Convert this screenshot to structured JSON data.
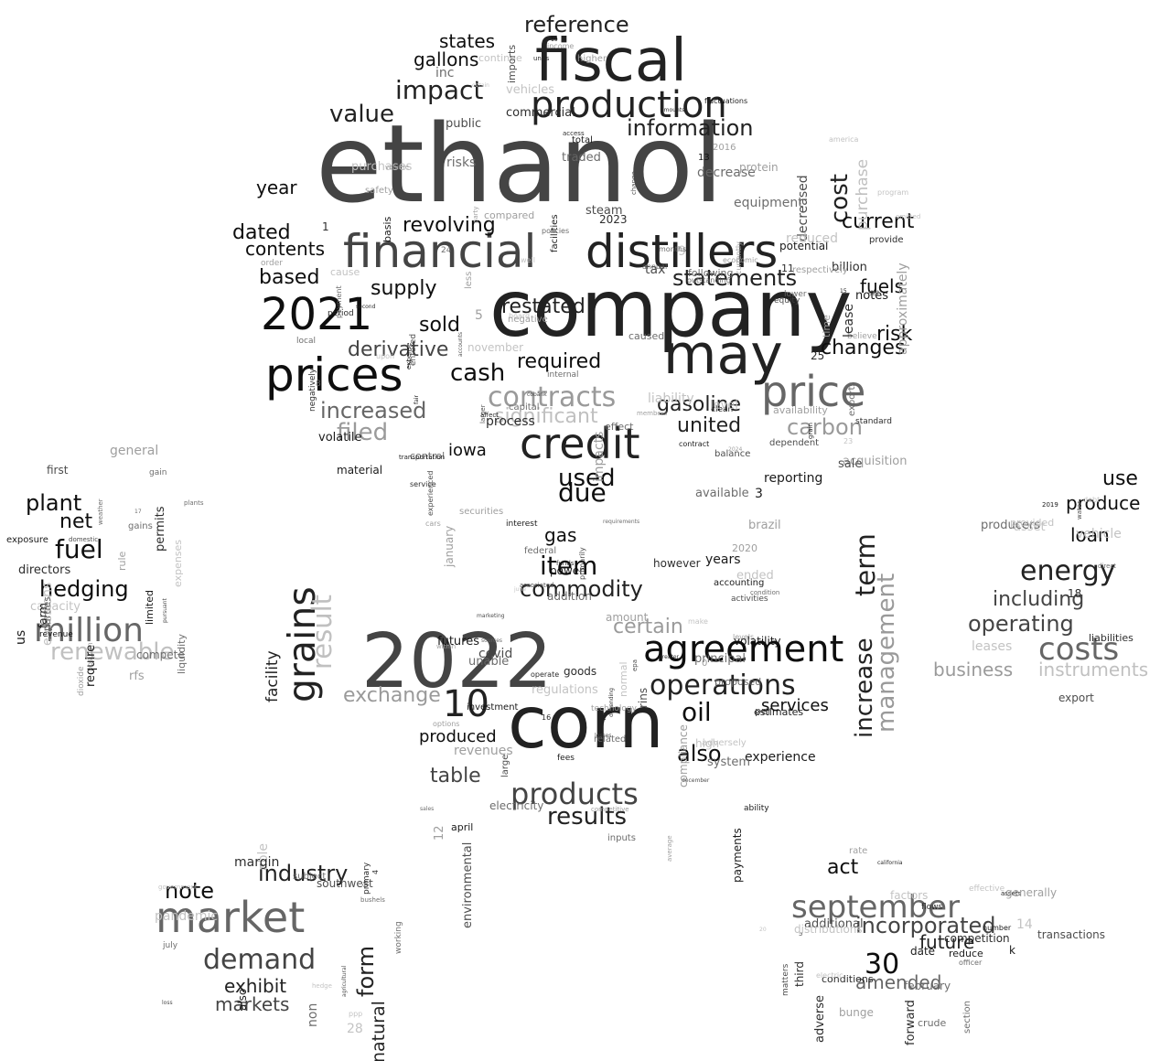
{
  "palette": {
    "darkest": "#0e0e0e",
    "dark": "#222222",
    "mid_dark": "#444444",
    "mid": "#666666",
    "light": "#9a9a9a",
    "lightest": "#c0c0c0"
  },
  "words": [
    {
      "text": "ethanol",
      "weight": 1.0,
      "shade": "mid_dark",
      "rot": 0
    },
    {
      "text": "company",
      "weight": 0.72,
      "shade": "dark",
      "rot": 0
    },
    {
      "text": "2022",
      "weight": 0.66,
      "shade": "mid_dark",
      "rot": 0
    },
    {
      "text": "corn",
      "weight": 0.62,
      "shade": "dark",
      "rot": 0
    },
    {
      "text": "fiscal",
      "weight": 0.52,
      "shade": "dark",
      "rot": 0
    },
    {
      "text": "may",
      "weight": 0.5,
      "shade": "dark",
      "rot": 0
    },
    {
      "text": "financial",
      "weight": 0.46,
      "shade": "mid_dark",
      "rot": 0
    },
    {
      "text": "distillers",
      "weight": 0.46,
      "shade": "dark",
      "rot": 0
    },
    {
      "text": "prices",
      "weight": 0.46,
      "shade": "darkest",
      "rot": 0
    },
    {
      "text": "price",
      "weight": 0.44,
      "shade": "mid",
      "rot": 0
    },
    {
      "text": "2021",
      "weight": 0.42,
      "shade": "darkest",
      "rot": 0
    },
    {
      "text": "credit",
      "weight": 0.4,
      "shade": "dark",
      "rot": 0
    },
    {
      "text": "production",
      "weight": 0.38,
      "shade": "dark",
      "rot": 0
    },
    {
      "text": "market",
      "weight": 0.4,
      "shade": "mid",
      "rot": 0
    },
    {
      "text": "agreement",
      "weight": 0.36,
      "shade": "darkest",
      "rot": 0
    },
    {
      "text": "10",
      "weight": 0.36,
      "shade": "dark",
      "rot": 0
    },
    {
      "text": "grains",
      "weight": 0.34,
      "shade": "dark",
      "rot": -90
    },
    {
      "text": "september",
      "weight": 0.32,
      "shade": "mid",
      "rot": 0
    },
    {
      "text": "million",
      "weight": 0.32,
      "shade": "mid",
      "rot": 0
    },
    {
      "text": "products",
      "weight": 0.3,
      "shade": "mid_dark",
      "rot": 0
    },
    {
      "text": "contracts",
      "weight": 0.28,
      "shade": "light",
      "rot": 0
    },
    {
      "text": "costs",
      "weight": 0.3,
      "shade": "mid",
      "rot": 0
    },
    {
      "text": "30",
      "weight": 0.28,
      "shade": "darkest",
      "rot": 0
    },
    {
      "text": "demand",
      "weight": 0.28,
      "shade": "mid_dark",
      "rot": 0
    },
    {
      "text": "operations",
      "weight": 0.26,
      "shade": "dark",
      "rot": 0
    },
    {
      "text": "energy",
      "weight": 0.26,
      "shade": "dark",
      "rot": 0
    },
    {
      "text": "renewable",
      "weight": 0.26,
      "shade": "lightest",
      "rot": 0
    },
    {
      "text": "impact",
      "weight": 0.26,
      "shade": "dark",
      "rot": 0
    },
    {
      "text": "statements",
      "weight": 0.24,
      "shade": "dark",
      "rot": 0
    },
    {
      "text": "incorporated",
      "weight": 0.24,
      "shade": "mid_dark",
      "rot": 0
    },
    {
      "text": "fuel",
      "weight": 0.24,
      "shade": "darkest",
      "rot": 0
    },
    {
      "text": "result",
      "weight": 0.24,
      "shade": "lightest",
      "rot": -90
    },
    {
      "text": "term",
      "weight": 0.24,
      "shade": "dark",
      "rot": -90
    },
    {
      "text": "increase",
      "weight": 0.22,
      "shade": "dark",
      "rot": -90
    },
    {
      "text": "management",
      "weight": 0.22,
      "shade": "light",
      "rot": -90
    },
    {
      "text": "cost",
      "weight": 0.22,
      "shade": "dark",
      "rot": -90
    },
    {
      "text": "information",
      "weight": 0.22,
      "shade": "dark",
      "rot": 0
    },
    {
      "text": "reference",
      "weight": 0.22,
      "shade": "dark",
      "rot": 0
    },
    {
      "text": "value",
      "weight": 0.22,
      "shade": "dark",
      "rot": 0
    },
    {
      "text": "increased",
      "weight": 0.22,
      "shade": "mid",
      "rot": 0
    },
    {
      "text": "filed",
      "weight": 0.22,
      "shade": "light",
      "rot": 0
    },
    {
      "text": "carbon",
      "weight": 0.22,
      "shade": "light",
      "rot": 0
    },
    {
      "text": "note",
      "weight": 0.22,
      "shade": "darkest",
      "rot": 0
    },
    {
      "text": "industry",
      "weight": 0.22,
      "shade": "dark",
      "rot": 0
    },
    {
      "text": "form",
      "weight": 0.2,
      "shade": "dark",
      "rot": -90
    },
    {
      "text": "commodity",
      "weight": 0.2,
      "shade": "dark",
      "rot": 0
    },
    {
      "text": "item",
      "weight": 0.2,
      "shade": "darkest",
      "rot": 0
    },
    {
      "text": "due",
      "weight": 0.2,
      "shade": "darkest",
      "rot": 0
    },
    {
      "text": "used",
      "weight": 0.2,
      "shade": "darkest",
      "rot": 0
    },
    {
      "text": "results",
      "weight": 0.2,
      "shade": "dark",
      "rot": 0
    },
    {
      "text": "cash",
      "weight": 0.2,
      "shade": "darkest",
      "rot": 0
    },
    {
      "text": "derivative",
      "weight": 0.18,
      "shade": "mid_dark",
      "rot": 0
    },
    {
      "text": "supply",
      "weight": 0.18,
      "shade": "darkest",
      "rot": 0
    },
    {
      "text": "based",
      "weight": 0.18,
      "shade": "darkest",
      "rot": 0
    },
    {
      "text": "restated",
      "weight": 0.18,
      "shade": "dark",
      "rot": 0
    },
    {
      "text": "sold",
      "weight": 0.18,
      "shade": "darkest",
      "rot": 0
    },
    {
      "text": "plant",
      "weight": 0.18,
      "shade": "darkest",
      "rot": 0
    },
    {
      "text": "hedging",
      "weight": 0.18,
      "shade": "darkest",
      "rot": 0
    },
    {
      "text": "including",
      "weight": 0.18,
      "shade": "mid_dark",
      "rot": 0
    },
    {
      "text": "operating",
      "weight": 0.18,
      "shade": "mid_dark",
      "rot": 0
    },
    {
      "text": "business",
      "weight": 0.16,
      "shade": "light",
      "rot": 0
    },
    {
      "text": "instruments",
      "weight": 0.16,
      "shade": "lightest",
      "rot": 0
    },
    {
      "text": "exchange",
      "weight": 0.16,
      "shade": "light",
      "rot": 0
    },
    {
      "text": "oil",
      "weight": 0.18,
      "shade": "darkest",
      "rot": 0
    },
    {
      "text": "also",
      "weight": 0.18,
      "shade": "darkest",
      "rot": 0
    },
    {
      "text": "amended",
      "weight": 0.16,
      "shade": "mid",
      "rot": 0
    },
    {
      "text": "future",
      "weight": 0.16,
      "shade": "dark",
      "rot": 0
    },
    {
      "text": "natural",
      "weight": 0.16,
      "shade": "dark",
      "rot": -90
    },
    {
      "text": "table",
      "weight": 0.16,
      "shade": "mid_dark",
      "rot": 0
    },
    {
      "text": "gasoline",
      "weight": 0.16,
      "shade": "dark",
      "rot": 0
    },
    {
      "text": "united",
      "weight": 0.16,
      "shade": "dark",
      "rot": 0
    },
    {
      "text": "significant",
      "weight": 0.16,
      "shade": "lightest",
      "rot": 0
    },
    {
      "text": "required",
      "weight": 0.16,
      "shade": "darkest",
      "rot": 0
    },
    {
      "text": "certain",
      "weight": 0.16,
      "shade": "light",
      "rot": 0
    },
    {
      "text": "risk",
      "weight": 0.16,
      "shade": "darkest",
      "rot": 0
    },
    {
      "text": "changes",
      "weight": 0.16,
      "shade": "darkest",
      "rot": 0
    },
    {
      "text": "current",
      "weight": 0.16,
      "shade": "darkest",
      "rot": 0
    },
    {
      "text": "revolving",
      "weight": 0.16,
      "shade": "darkest",
      "rot": 0
    },
    {
      "text": "dated",
      "weight": 0.16,
      "shade": "darkest",
      "rot": 0
    },
    {
      "text": "contents",
      "weight": 0.16,
      "shade": "darkest",
      "rot": 0
    },
    {
      "text": "states",
      "weight": 0.16,
      "shade": "darkest",
      "rot": 0
    },
    {
      "text": "gallons",
      "weight": 0.16,
      "shade": "darkest",
      "rot": 0
    },
    {
      "text": "year",
      "weight": 0.16,
      "shade": "darkest",
      "rot": 0
    },
    {
      "text": "fuels",
      "weight": 0.16,
      "shade": "darkest",
      "rot": 0
    },
    {
      "text": "use",
      "weight": 0.16,
      "shade": "darkest",
      "rot": 0
    },
    {
      "text": "produce",
      "weight": 0.14,
      "shade": "darkest",
      "rot": 0
    },
    {
      "text": "loan",
      "weight": 0.14,
      "shade": "darkest",
      "rot": 0
    },
    {
      "text": "net",
      "weight": 0.14,
      "shade": "darkest",
      "rot": 0
    },
    {
      "text": "exhibit",
      "weight": 0.14,
      "shade": "dark",
      "rot": 0
    },
    {
      "text": "markets",
      "weight": 0.14,
      "shade": "mid_dark",
      "rot": 0
    },
    {
      "text": "act",
      "weight": 0.14,
      "shade": "darkest",
      "rot": 0
    },
    {
      "text": "iowa",
      "weight": 0.14,
      "shade": "darkest",
      "rot": 0
    },
    {
      "text": "facility",
      "weight": 0.14,
      "shade": "dark",
      "rot": -90
    },
    {
      "text": "gas",
      "weight": 0.14,
      "shade": "darkest",
      "rot": 0
    },
    {
      "text": "services",
      "weight": 0.14,
      "shade": "darkest",
      "rot": 0
    },
    {
      "text": "produced",
      "weight": 0.14,
      "shade": "darkest",
      "rot": 0
    },
    {
      "text": "purchase",
      "weight": 0.14,
      "shade": "lightest",
      "rot": -90
    },
    {
      "text": "ethanol",
      "weight": 0.0,
      "shade": "mid_dark",
      "rot": 0,
      "hidden": true
    }
  ],
  "small_words": [
    "1",
    "2",
    "3",
    "4",
    "5",
    "6",
    "7",
    "8",
    "9",
    "0",
    "11",
    "12",
    "13",
    "14",
    "15",
    "16",
    "17",
    "18",
    "19",
    "20",
    "23",
    "24",
    "25",
    "28",
    "2016",
    "2019",
    "2020",
    "2023",
    "2024",
    "k",
    "u",
    "us",
    "ability",
    "able",
    "access",
    "accounting",
    "accounts",
    "acquisition",
    "activities",
    "addition",
    "additional",
    "adverse",
    "adversely",
    "affect",
    "agricultural",
    "also",
    "america",
    "amount",
    "amounts",
    "annual",
    "approximately",
    "april",
    "asset",
    "assets",
    "associated",
    "available",
    "availability",
    "average",
    "balance",
    "basis",
    "believe",
    "billion",
    "board",
    "brazil",
    "bunge",
    "bushels",
    "california",
    "capacity",
    "capital",
    "cars",
    "cause",
    "caused",
    "change",
    "clean",
    "cobank",
    "commercial",
    "compared",
    "compete",
    "competition",
    "competitive",
    "compliance",
    "condition",
    "conditions",
    "continue",
    "contract",
    "control",
    "covid",
    "crude",
    "currently",
    "date",
    "debt",
    "december",
    "decrease",
    "decreased",
    "dependent",
    "depending",
    "direct",
    "directors",
    "dioxide",
    "distributions",
    "domestic",
    "economic",
    "effect",
    "effective",
    "electric",
    "electricity",
    "emissions",
    "ended",
    "entered",
    "environmental",
    "epa",
    "equipment",
    "equity",
    "estimates",
    "expense",
    "expenses",
    "experience",
    "experienced",
    "export",
    "exports",
    "exposure",
    "facilities",
    "factors",
    "fair",
    "farm",
    "february",
    "federal",
    "fees",
    "first",
    "flows",
    "fluctuations",
    "following",
    "forward",
    "funds",
    "futures",
    "gain",
    "gains",
    "general",
    "generally",
    "goods",
    "government",
    "grain",
    "greater",
    "hedge",
    "high",
    "higher",
    "however",
    "impacts",
    "imports",
    "inc",
    "income",
    "inputs",
    "interest",
    "internal",
    "investment",
    "january",
    "july",
    "june",
    "large",
    "larger",
    "lease",
    "leases",
    "less",
    "level",
    "levels",
    "liabilities",
    "liability",
    "limited",
    "liquidity",
    "local",
    "loss",
    "losses",
    "lower",
    "make",
    "margin",
    "marketing",
    "material",
    "matters",
    "members",
    "months",
    "negative",
    "negatively",
    "non",
    "normal",
    "notes",
    "november",
    "number",
    "obtain",
    "officer",
    "omitted",
    "operate",
    "options",
    "order",
    "outstanding",
    "parties",
    "party",
    "payment",
    "payments",
    "pandemic",
    "per",
    "period",
    "permits",
    "plants",
    "policies",
    "position",
    "potential",
    "power",
    "ppp",
    "primarily",
    "primary",
    "principal",
    "process",
    "producers",
    "program",
    "proposed",
    "protein",
    "provide",
    "provided",
    "public",
    "purchases",
    "pursuant",
    "rate",
    "reduce",
    "reduced",
    "regulations",
    "related",
    "reporting",
    "require",
    "requirements",
    "respectively",
    "revenue",
    "revenues",
    "rfs",
    "rins",
    "risks",
    "rule",
    "safety",
    "sale",
    "sales",
    "second",
    "section",
    "securities",
    "service",
    "set",
    "southwest",
    "standard",
    "steam",
    "subject",
    "sources",
    "system",
    "tax",
    "technology",
    "third",
    "time",
    "total",
    "traded",
    "transactions",
    "transportation",
    "units",
    "unable",
    "upon",
    "vehicle",
    "vehicles",
    "volatility",
    "volatile",
    "volume",
    "water",
    "weather",
    "well",
    "within",
    "working",
    "years"
  ]
}
